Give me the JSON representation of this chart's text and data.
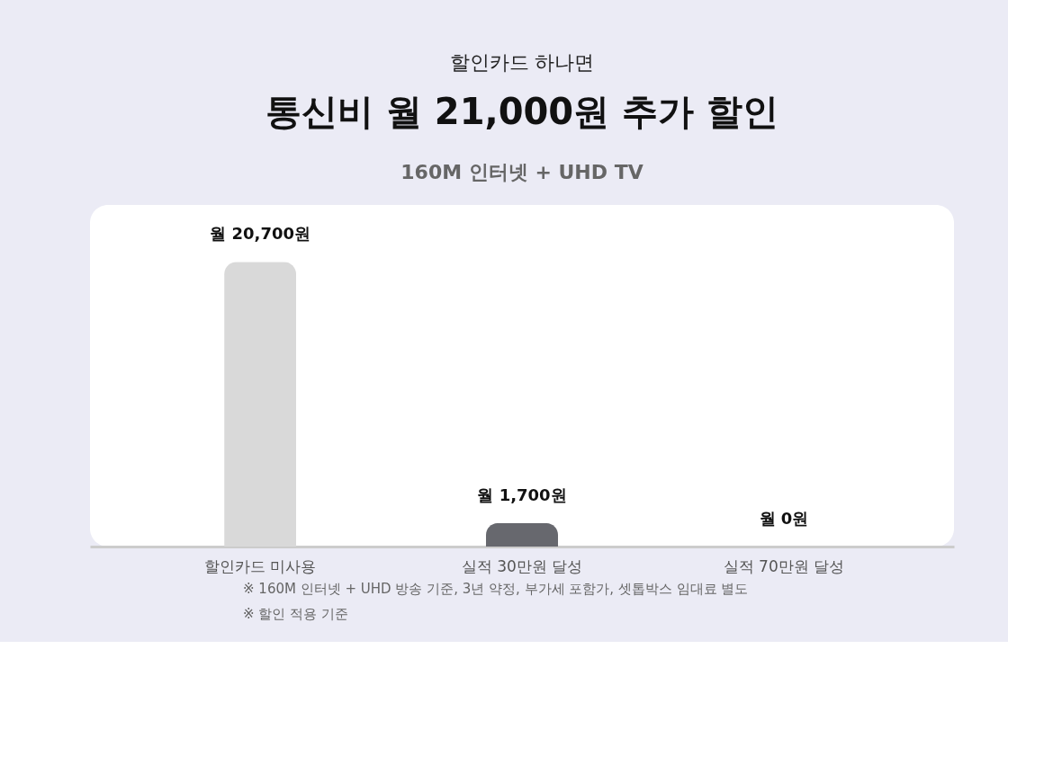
{
  "chart_data": {
    "type": "bar",
    "title": "통신비 월 21,000원 추가 할인",
    "subtitle": "160M 인터넷 + UHD TV",
    "categories": [
      "할인카드 미사용",
      "실적 30만원 달성",
      "실적 70만원 달성"
    ],
    "values": [
      20700,
      1700,
      0
    ],
    "colors": [
      "#d9d9d9",
      "#67686e",
      "#ffc4e4"
    ],
    "value_labels": [
      "월 20,700원",
      "월 1,700원",
      "월 0원"
    ],
    "annotations": [
      "할인카드 하나면",
      "※ 160M  인터넷 + UHD 방송 기준, 3년 약정, 부가세 포함가, 셋톱박스 임대료 별도",
      "※ 할인 적용 기준"
    ],
    "grid": false
  }
}
